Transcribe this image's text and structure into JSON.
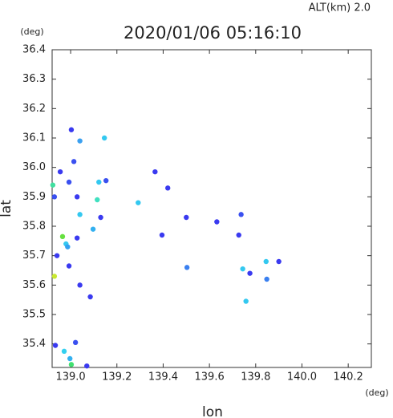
{
  "chart_data": {
    "type": "scatter",
    "title": "2020/01/06 05:16:10",
    "subtitle": "ALT(km)  2.0",
    "x_label": "lon",
    "y_label": "lat",
    "x_unit": "(deg)",
    "y_unit": "(deg)",
    "xlim": [
      138.92,
      140.3
    ],
    "ylim": [
      35.32,
      36.4
    ],
    "xticks": [
      {
        "value": 139,
        "label": "139.0"
      },
      139.2,
      139.4,
      139.6,
      139.8,
      {
        "value": 140,
        "label": "140.0"
      },
      140.2
    ],
    "yticks": [
      35.4,
      35.5,
      35.6,
      35.7,
      35.8,
      35.9,
      {
        "value": 36,
        "label": "36.0"
      },
      36.1,
      36.2,
      36.3,
      36.4
    ],
    "x": [
      139.003,
      139.146,
      139.04,
      139.014,
      138.955,
      139.365,
      138.923,
      138.993,
      139.122,
      139.153,
      139.028,
      139.115,
      138.93,
      139.292,
      139.04,
      139.13,
      139.097,
      138.965,
      138.98,
      138.987,
      139.028,
      138.941,
      139.737,
      139.727,
      139.9,
      139.845,
      139.744,
      139.775,
      139.848,
      139.758,
      138.93,
      139.04,
      139.085,
      138.993,
      138.934,
      138.972,
      138.997,
      139.003,
      139.021,
      139.07,
      139.42,
      139.5,
      139.632,
      139.395,
      139.503
    ],
    "values": [
      36.128,
      36.1,
      36.09,
      36.02,
      35.985,
      35.985,
      35.94,
      35.95,
      35.95,
      35.955,
      35.9,
      35.89,
      35.9,
      35.88,
      35.84,
      35.83,
      35.79,
      35.765,
      35.74,
      35.73,
      35.76,
      35.7,
      35.84,
      35.77,
      35.68,
      35.68,
      35.655,
      35.64,
      35.62,
      35.545,
      35.63,
      35.6,
      35.56,
      35.665,
      35.395,
      35.375,
      35.35,
      35.33,
      35.405,
      35.325,
      35.93,
      35.83,
      35.815,
      35.77,
      35.66
    ],
    "colors": [
      "#3a3af0",
      "#33c8f0",
      "#3aa0f0",
      "#3a50f0",
      "#3a3af0",
      "#3a3af0",
      "#40e0a0",
      "#3a50f0",
      "#33c8f0",
      "#3a50f0",
      "#3a3af0",
      "#40e0c0",
      "#3a50f0",
      "#33c8f0",
      "#33c8f0",
      "#3a3af0",
      "#33b0f0",
      "#66e040",
      "#33c8f0",
      "#33a0f0",
      "#3a3af0",
      "#3a3af0",
      "#3a50f0",
      "#3a3af0",
      "#3a3af0",
      "#33c8f0",
      "#33c8f0",
      "#3a3af0",
      "#3a80f0",
      "#33c8f0",
      "#c8e830",
      "#3a3af0",
      "#3a3af0",
      "#3a3af0",
      "#3a3af0",
      "#33d0f0",
      "#33b0f0",
      "#40e070",
      "#3a50f0",
      "#3a3af0",
      "#3a3af0",
      "#3a3af0",
      "#3a3af0",
      "#3a3af0",
      "#3a80f0"
    ]
  }
}
